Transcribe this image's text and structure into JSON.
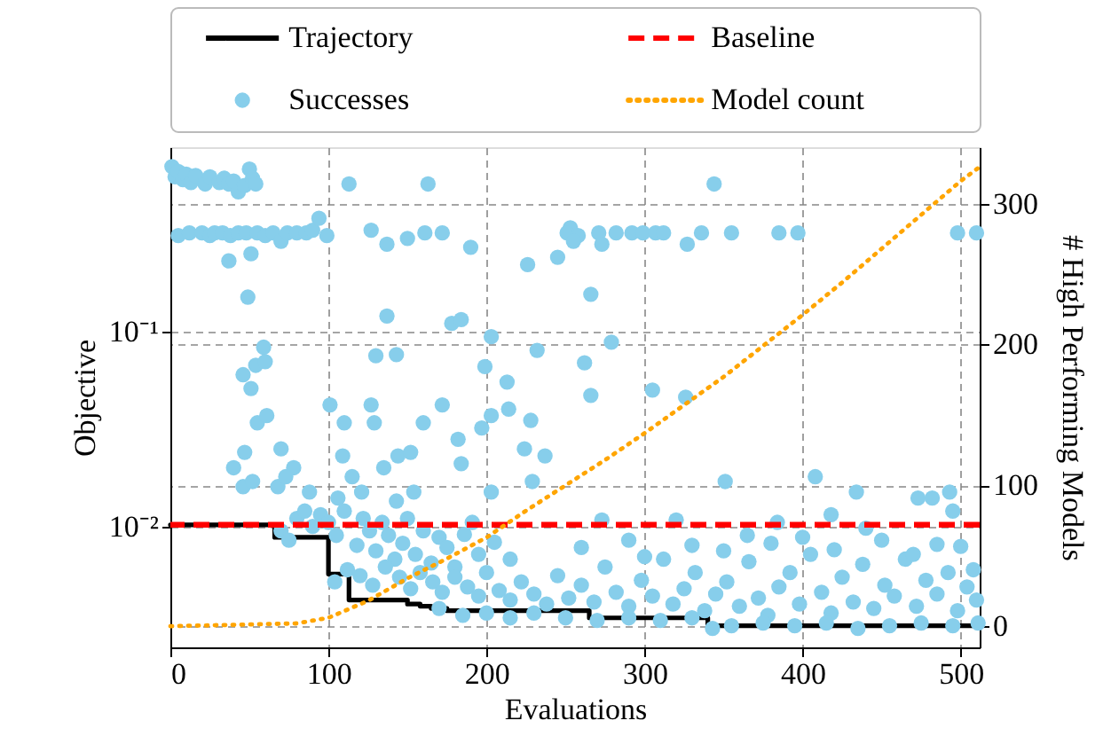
{
  "chart_data": {
    "type": "scatter",
    "xlabel": "Evaluations",
    "ylabel": "Objective",
    "y2label": "# High Performing Models",
    "xlim": [
      0,
      512
    ],
    "xticks": [
      0,
      100,
      200,
      300,
      400,
      500
    ],
    "ylim": [
      0.0024,
      0.88
    ],
    "yticks": [
      {
        "value": 0.01,
        "label": "10⁻²"
      },
      {
        "value": 0.1,
        "label": "10⁻¹"
      }
    ],
    "y2lim": [
      -15,
      340
    ],
    "y2ticks": [
      0,
      100,
      200,
      300
    ],
    "log": "y",
    "grid": true,
    "legend": "top",
    "series": [
      {
        "name": "Trajectory",
        "type": "step",
        "color": "#000000",
        "line_style": "solid",
        "x": [
          0,
          66,
          100,
          113,
          150,
          158,
          165,
          175,
          265,
          340,
          512
        ],
        "values": [
          0.0102,
          0.0088,
          0.0057,
          0.0042,
          0.004,
          0.0039,
          0.0038,
          0.0037,
          0.0034,
          0.0031,
          0.0031
        ]
      },
      {
        "name": "Successes",
        "color": "#87ceeb",
        "marker": "circle",
        "x": [
          1,
          3,
          5,
          8,
          10,
          13,
          16,
          22,
          25,
          31,
          34,
          37,
          40,
          43,
          47,
          50,
          52,
          54,
          5,
          12,
          20,
          25,
          28,
          33,
          38,
          43,
          48,
          55,
          60,
          65,
          70,
          74,
          80,
          86,
          90,
          94,
          99,
          113,
          163,
          127,
          137,
          150,
          161,
          172,
          190,
          37,
          51,
          49,
          137,
          178,
          184,
          203,
          199,
          213,
          232,
          226,
          245,
          253,
          46,
          54,
          59,
          60,
          51,
          55,
          61,
          130,
          143,
          101,
          110,
          127,
          129,
          160,
          172,
          182,
          184,
          197,
          203,
          214,
          228,
          224,
          237,
          229,
          203,
          47,
          40,
          46,
          52,
          70,
          78,
          68,
          73,
          109,
          115,
          135,
          144,
          152,
          88,
          106,
          121,
          143,
          154,
          191,
          344,
          251,
          258,
          271,
          282,
          292,
          299,
          307,
          312,
          327,
          336,
          355,
          385,
          397,
          498,
          510,
          255,
          273,
          266,
          279,
          262,
          266,
          305,
          326,
          351,
          408,
          434,
          473,
          482,
          493,
          495,
          418,
          273,
          320,
          384,
          440,
          485,
          70,
          75,
          80,
          85,
          90,
          95,
          100,
          105,
          110,
          118,
          122,
          126,
          130,
          134,
          138,
          142,
          147,
          150,
          155,
          160,
          165,
          170,
          175,
          180,
          186,
          195,
          205,
          215,
          104,
          112,
          120,
          128,
          136,
          145,
          152,
          158,
          166,
          172,
          180,
          188,
          195,
          200,
          208,
          215,
          222,
          230,
          238,
          245,
          252,
          260,
          268,
          275,
          282,
          290,
          298,
          305,
          312,
          318,
          325,
          332,
          338,
          345,
          352,
          360,
          366,
          372,
          378,
          385,
          392,
          398,
          405,
          412,
          418,
          425,
          432,
          438,
          445,
          452,
          458,
          465,
          472,
          478,
          485,
          492,
          498,
          504,
          510,
          508,
          170,
          185,
          200,
          215,
          230,
          250,
          270,
          290,
          310,
          330,
          343,
          355,
          375,
          395,
          415,
          435,
          455,
          475,
          495,
          511,
          260,
          290,
          300,
          330,
          350,
          365,
          380,
          400,
          420,
          450,
          470,
          500
        ],
        "values": [
          0.7,
          0.62,
          0.66,
          0.6,
          0.64,
          0.58,
          0.63,
          0.57,
          0.62,
          0.58,
          0.61,
          0.57,
          0.59,
          0.52,
          0.56,
          0.68,
          0.61,
          0.57,
          0.31,
          0.32,
          0.32,
          0.31,
          0.32,
          0.32,
          0.31,
          0.32,
          0.32,
          0.32,
          0.31,
          0.32,
          0.29,
          0.32,
          0.32,
          0.32,
          0.33,
          0.38,
          0.31,
          0.57,
          0.57,
          0.33,
          0.28,
          0.3,
          0.32,
          0.32,
          0.27,
          0.23,
          0.25,
          0.15,
          0.12,
          0.11,
          0.115,
          0.094,
          0.066,
          0.055,
          0.08,
          0.22,
          0.24,
          0.34,
          0.06,
          0.067,
          0.083,
          0.07,
          0.051,
          0.034,
          0.037,
          0.075,
          0.076,
          0.042,
          0.034,
          0.042,
          0.034,
          0.034,
          0.042,
          0.028,
          0.021,
          0.032,
          0.037,
          0.04,
          0.035,
          0.025,
          0.023,
          0.017,
          0.015,
          0.024,
          0.02,
          0.016,
          0.017,
          0.025,
          0.02,
          0.016,
          0.018,
          0.023,
          0.018,
          0.02,
          0.023,
          0.024,
          0.015,
          0.014,
          0.015,
          0.0135,
          0.015,
          0.0105,
          0.57,
          0.32,
          0.31,
          0.32,
          0.32,
          0.32,
          0.32,
          0.32,
          0.32,
          0.28,
          0.32,
          0.32,
          0.32,
          0.32,
          0.32,
          0.32,
          0.29,
          0.28,
          0.155,
          0.088,
          0.069,
          0.047,
          0.05,
          0.046,
          0.017,
          0.018,
          0.015,
          0.014,
          0.014,
          0.015,
          0.012,
          0.0115,
          0.0108,
          0.0108,
          0.0105,
          0.0098,
          0.0081,
          0.0095,
          0.0085,
          0.011,
          0.012,
          0.01,
          0.0115,
          0.0105,
          0.009,
          0.012,
          0.008,
          0.011,
          0.0095,
          0.0075,
          0.0105,
          0.009,
          0.0068,
          0.0082,
          0.011,
          0.0072,
          0.0095,
          0.0065,
          0.0088,
          0.0078,
          0.0062,
          0.0091,
          0.0072,
          0.0083,
          0.0068,
          0.0052,
          0.006,
          0.0056,
          0.005,
          0.0062,
          0.0055,
          0.0048,
          0.0058,
          0.0052,
          0.0046,
          0.0055,
          0.0049,
          0.0044,
          0.0058,
          0.0047,
          0.0042,
          0.0052,
          0.0045,
          0.004,
          0.0056,
          0.0043,
          0.005,
          0.0041,
          0.0062,
          0.0046,
          0.0039,
          0.0053,
          0.0044,
          0.0068,
          0.004,
          0.0048,
          0.0058,
          0.0037,
          0.0045,
          0.0052,
          0.0039,
          0.0066,
          0.0043,
          0.0035,
          0.0049,
          0.0058,
          0.004,
          0.0072,
          0.0046,
          0.0036,
          0.0055,
          0.0041,
          0.0064,
          0.0038,
          0.005,
          0.0044,
          0.0068,
          0.0039,
          0.0053,
          0.0045,
          0.0058,
          0.0037,
          0.0049,
          0.0042,
          0.006,
          0.0038,
          0.0035,
          0.0036,
          0.0034,
          0.0036,
          0.0034,
          0.0033,
          0.0034,
          0.0033,
          0.0034,
          0.003,
          0.0031,
          0.0032,
          0.0031,
          0.0032,
          0.003,
          0.0031,
          0.0032,
          0.0031,
          0.0032,
          0.0078,
          0.0085,
          0.007,
          0.008,
          0.0075,
          0.009,
          0.0082,
          0.0088,
          0.0076,
          0.0085,
          0.0072,
          0.0079
        ]
      },
      {
        "name": "Model count",
        "type": "line",
        "color": "#ffa500",
        "line_style": "dotted",
        "axis": "y2",
        "x": [
          0,
          80,
          100,
          125,
          150,
          175,
          200,
          225,
          250,
          275,
          300,
          325,
          350,
          375,
          400,
          425,
          450,
          475,
          500,
          512
        ],
        "values": [
          0,
          2,
          6,
          18,
          34,
          48,
          63,
          82,
          100,
          118,
          137,
          157,
          177,
          199,
          221,
          244,
          268,
          292,
          316,
          326
        ]
      }
    ],
    "ref_lines": [
      {
        "axis": "y",
        "value": 0.0102,
        "label": "Baseline",
        "color": "#ff0000",
        "line_style": "dashed"
      }
    ]
  }
}
